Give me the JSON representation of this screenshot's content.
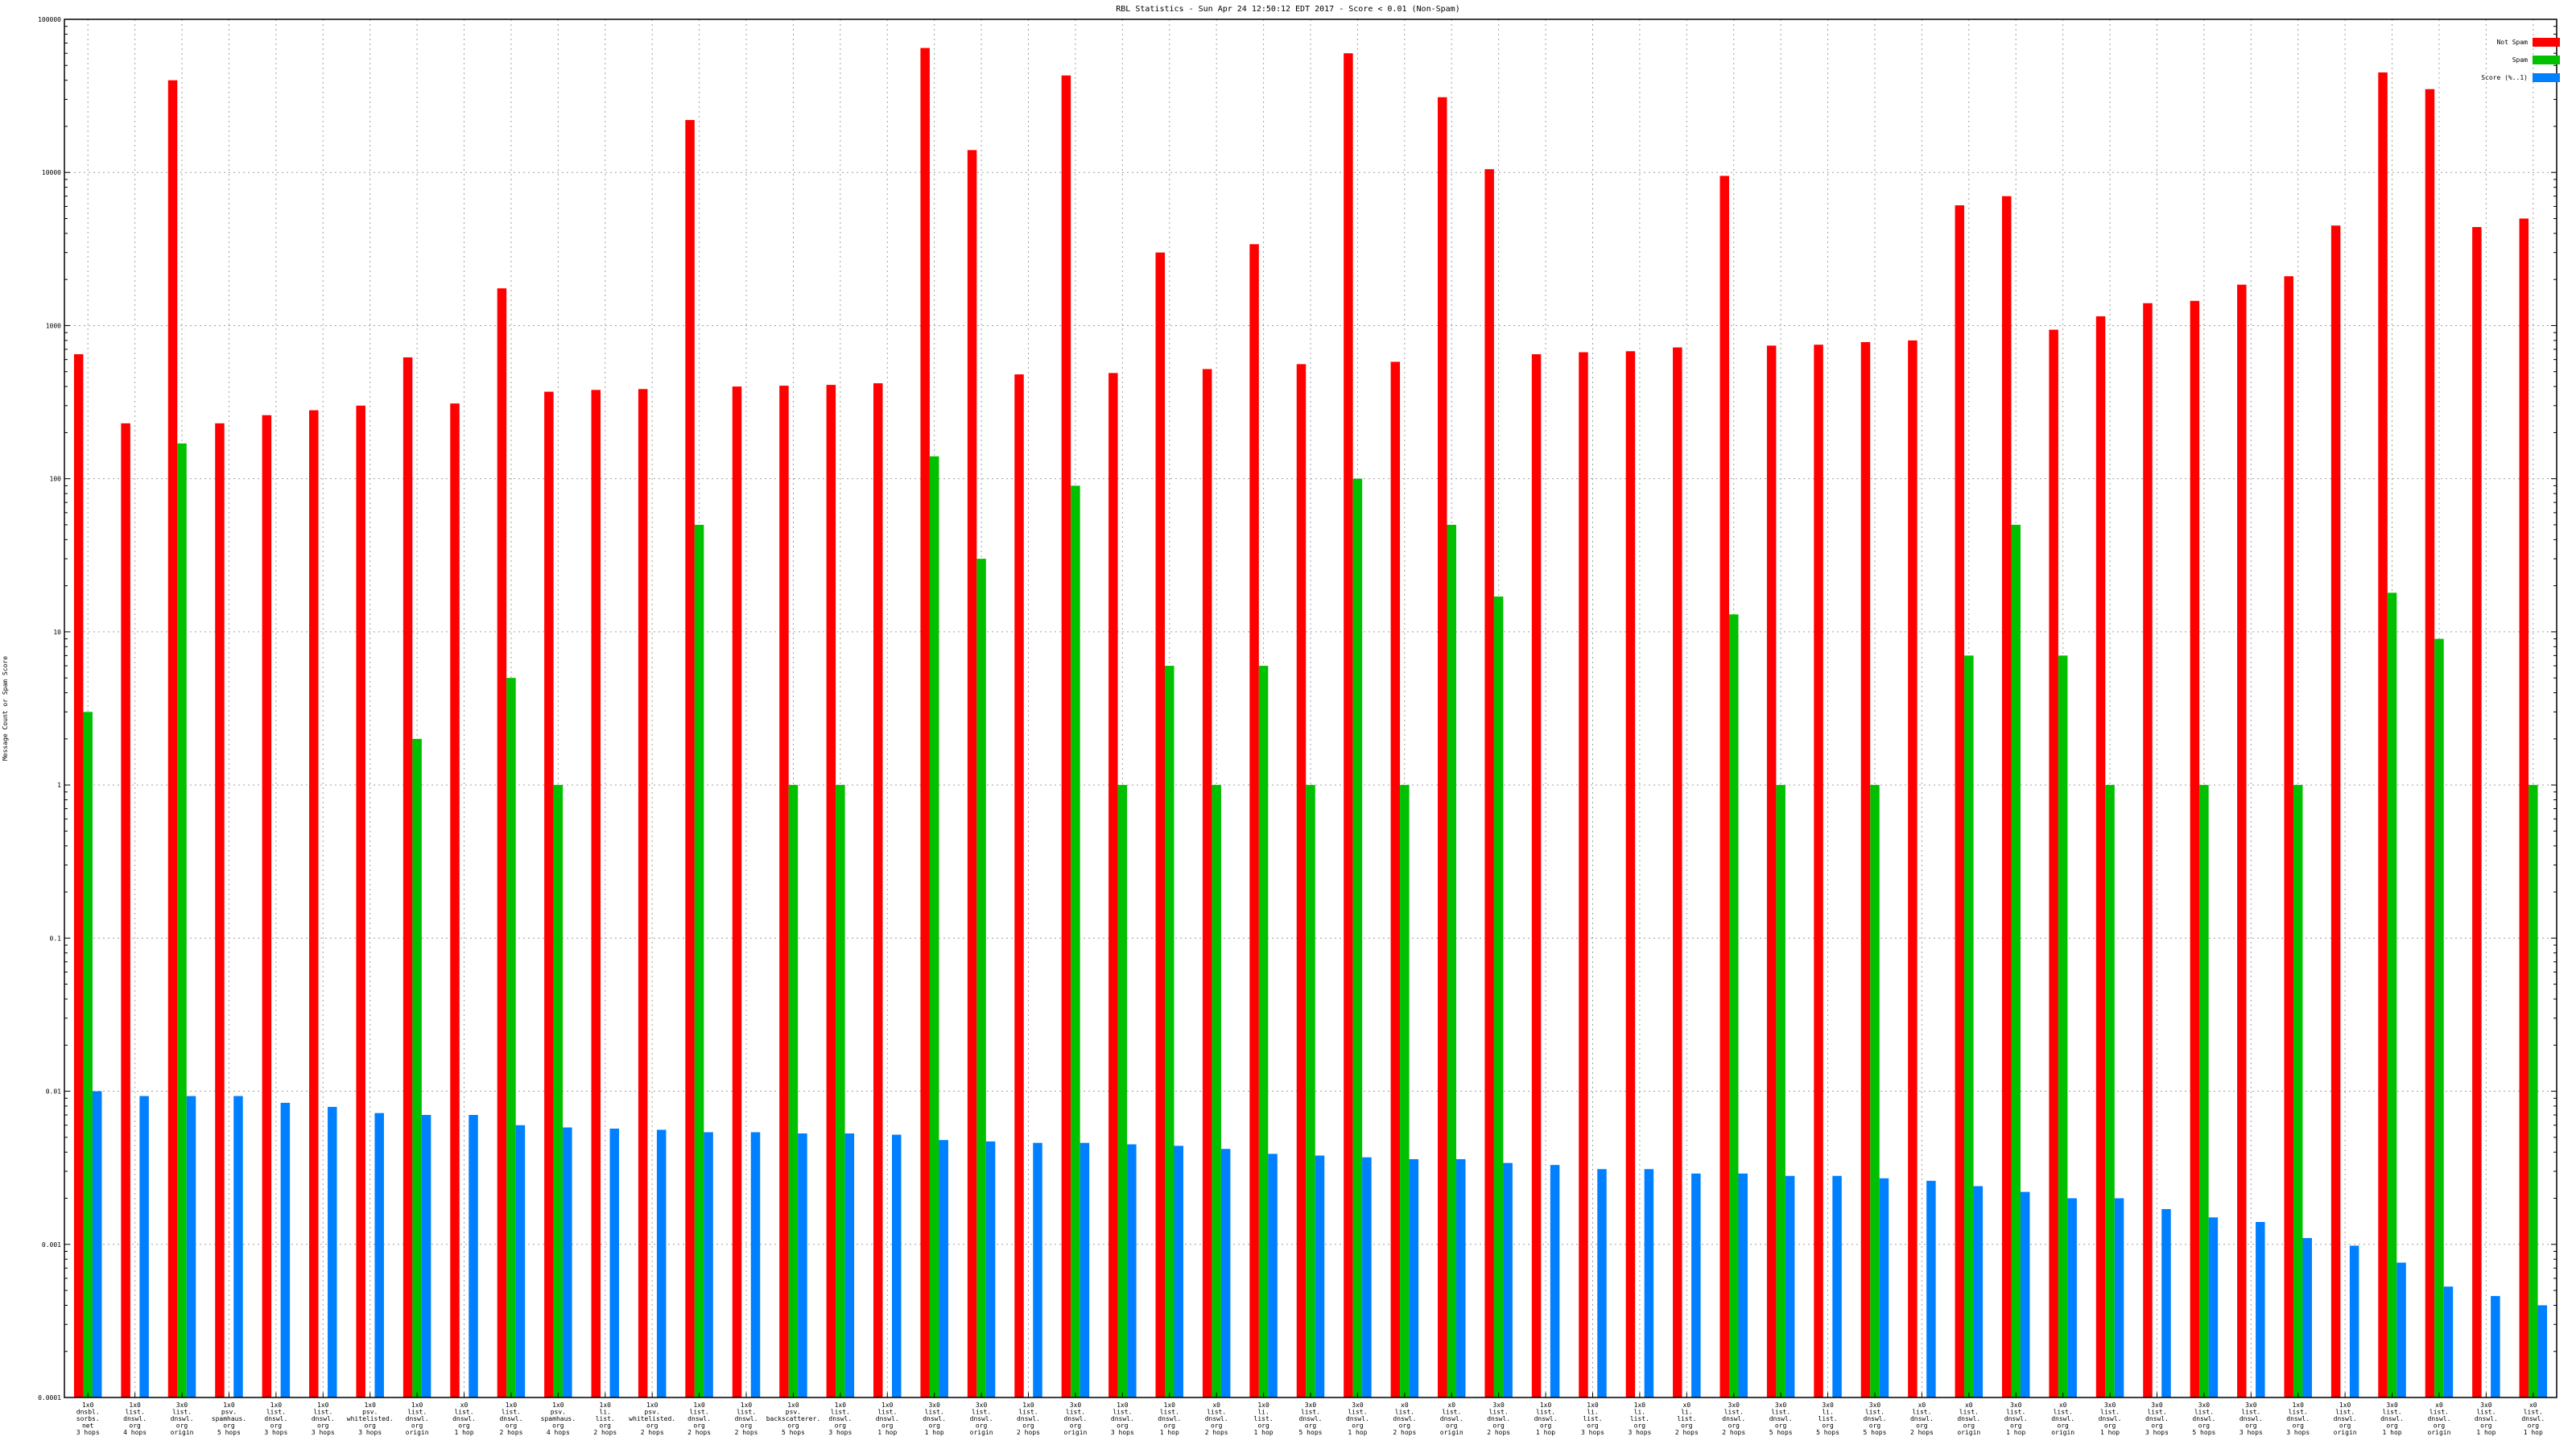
{
  "chart_data": {
    "type": "bar",
    "title": "RBL Statistics - Sun Apr 24 12:50:12 EDT 2017 - Score < 0.01 (Non-Spam)",
    "xlabel": "",
    "ylabel": "Message Count or Spam Score",
    "yscale": "log",
    "ylim": [
      0.0001,
      100000
    ],
    "yticks": [
      "0.0001",
      "0.001",
      "0.01",
      "0.1",
      "1",
      "10",
      "100",
      "1000",
      "10000",
      "100000"
    ],
    "grid": true,
    "legend_position": "top-right",
    "categories": [
      [
        "1x0",
        "dnsbl.",
        "sorbs.",
        "net",
        "3 hops"
      ],
      [
        "1x0",
        "list.",
        "dnswl.",
        "org",
        "4 hops"
      ],
      [
        "3x0",
        "list.",
        "dnswl.",
        "org",
        "origin"
      ],
      [
        "1x0",
        "psv.",
        "spamhaus.",
        "org",
        "5 hops"
      ],
      [
        "1x0",
        "list.",
        "dnswl.",
        "org",
        "3 hops"
      ],
      [
        "1x0",
        "list.",
        "dnswl.",
        "org",
        "3 hops"
      ],
      [
        "1x0",
        "psv.",
        "whitelisted.",
        "org",
        "3 hops"
      ],
      [
        "1x0",
        "list.",
        "dnswl.",
        "org",
        "origin"
      ],
      [
        "x0",
        "list.",
        "dnswl.",
        "org",
        "1 hop"
      ],
      [
        "1x0",
        "list.",
        "dnswl.",
        "org",
        "2 hops"
      ],
      [
        "1x0",
        "psv.",
        "spamhaus.",
        "org",
        "4 hops"
      ],
      [
        "1x0",
        "li.",
        "list.",
        "org",
        "2 hops"
      ],
      [
        "1x0",
        "psv.",
        "whitelisted.",
        "org",
        "2 hops"
      ],
      [
        "1x0",
        "list.",
        "dnswl.",
        "org",
        "2 hops"
      ],
      [
        "1x0",
        "list.",
        "dnswl.",
        "org",
        "2 hops"
      ],
      [
        "1x0",
        "psv.",
        "backscatterer.",
        "org",
        "5 hops"
      ],
      [
        "1x0",
        "list.",
        "dnswl.",
        "org",
        "3 hops"
      ],
      [
        "1x0",
        "list.",
        "dnswl.",
        "org",
        "1 hop"
      ],
      [
        "3x0",
        "list.",
        "dnswl.",
        "org",
        "1 hop"
      ],
      [
        "3x0",
        "list.",
        "dnswl.",
        "org",
        "origin"
      ],
      [
        "1x0",
        "list.",
        "dnswl.",
        "org",
        "2 hops"
      ],
      [
        "3x0",
        "list.",
        "dnswl.",
        "org",
        "origin"
      ],
      [
        "1x0",
        "list.",
        "dnswl.",
        "org",
        "3 hops"
      ],
      [
        "1x0",
        "list.",
        "dnswl.",
        "org",
        "1 hop"
      ],
      [
        "x0",
        "list.",
        "dnswl.",
        "org",
        "2 hops"
      ],
      [
        "1x0",
        "li.",
        "list.",
        "org",
        "1 hop"
      ],
      [
        "3x0",
        "list.",
        "dnswl.",
        "org",
        "5 hops"
      ],
      [
        "3x0",
        "list.",
        "dnswl.",
        "org",
        "1 hop"
      ],
      [
        "x0",
        "list.",
        "dnswl.",
        "org",
        "2 hops"
      ],
      [
        "x0",
        "list.",
        "dnswl.",
        "org",
        "origin"
      ],
      [
        "3x0",
        "list.",
        "dnswl.",
        "org",
        "2 hops"
      ],
      [
        "1x0",
        "list.",
        "dnswl.",
        "org",
        "1 hop"
      ],
      [
        "1x0",
        "li.",
        "list.",
        "org",
        "3 hops"
      ],
      [
        "1x0",
        "li.",
        "list.",
        "org",
        "3 hops"
      ],
      [
        "x0",
        "li.",
        "list.",
        "org",
        "2 hops"
      ],
      [
        "3x0",
        "list.",
        "dnswl.",
        "org",
        "2 hops"
      ],
      [
        "3x0",
        "list.",
        "dnswl.",
        "org",
        "5 hops"
      ],
      [
        "3x0",
        "li.",
        "list.",
        "org",
        "5 hops"
      ],
      [
        "3x0",
        "list.",
        "dnswl.",
        "org",
        "5 hops"
      ],
      [
        "x0",
        "list.",
        "dnswl.",
        "org",
        "2 hops"
      ],
      [
        "x0",
        "list.",
        "dnswl.",
        "org",
        "origin"
      ],
      [
        "3x0",
        "list.",
        "dnswl.",
        "org",
        "1 hop"
      ],
      [
        "x0",
        "list.",
        "dnswl.",
        "org",
        "origin"
      ],
      [
        "3x0",
        "list.",
        "dnswl.",
        "org",
        "1 hop"
      ],
      [
        "3x0",
        "list.",
        "dnswl.",
        "org",
        "3 hops"
      ],
      [
        "3x0",
        "list.",
        "dnswl.",
        "org",
        "5 hops"
      ],
      [
        "3x0",
        "list.",
        "dnswl.",
        "org",
        "3 hops"
      ],
      [
        "1x0",
        "list.",
        "dnswl.",
        "org",
        "3 hops"
      ],
      [
        "1x0",
        "list.",
        "dnswl.",
        "org",
        "origin"
      ],
      [
        "3x0",
        "list.",
        "dnswl.",
        "org",
        "1 hop"
      ],
      [
        "x0",
        "list.",
        "dnswl.",
        "org",
        "origin"
      ],
      [
        "3x0",
        "list.",
        "dnswl.",
        "org",
        "1 hop"
      ],
      [
        "x0",
        "list.",
        "dnswl.",
        "org",
        "1 hop"
      ]
    ],
    "series": [
      {
        "name": "Not Spam",
        "color": "#ff0000",
        "values": [
          650,
          230,
          40000,
          230,
          260,
          280,
          300,
          620,
          310,
          1750,
          370,
          380,
          385,
          22000,
          400,
          405,
          410,
          420,
          65000,
          14000,
          480,
          43000,
          490,
          3000,
          520,
          3400,
          560,
          60000,
          580,
          31000,
          10500,
          650,
          670,
          680,
          720,
          9500,
          740,
          750,
          780,
          800,
          6100,
          7000,
          940,
          1150,
          1400,
          1450,
          1850,
          2100,
          4500,
          45000,
          35000,
          4400,
          5000
        ]
      },
      {
        "name": "Spam",
        "color": "#00c000",
        "values": [
          3,
          null,
          170,
          null,
          null,
          null,
          null,
          2,
          null,
          5,
          1,
          null,
          null,
          50,
          null,
          1,
          1,
          null,
          140,
          30,
          null,
          90,
          1,
          6,
          1,
          6,
          1,
          100,
          1,
          50,
          17,
          null,
          null,
          null,
          null,
          13,
          1,
          null,
          1,
          null,
          7,
          50,
          7,
          1,
          null,
          1,
          null,
          1,
          null,
          18,
          9,
          null,
          1
        ]
      },
      {
        "name": "Score (%..1)",
        "color": "#0080ff",
        "values": [
          0.01,
          0.0093,
          0.0093,
          0.0093,
          0.0084,
          0.0079,
          0.0072,
          0.007,
          0.007,
          0.006,
          0.0058,
          0.0057,
          0.0056,
          0.0054,
          0.0054,
          0.0053,
          0.0053,
          0.0052,
          0.0048,
          0.0047,
          0.0046,
          0.0046,
          0.0045,
          0.0044,
          0.0042,
          0.0039,
          0.0038,
          0.0037,
          0.0036,
          0.0036,
          0.0034,
          0.0033,
          0.0031,
          0.0031,
          0.0029,
          0.0029,
          0.0028,
          0.0028,
          0.0027,
          0.0026,
          0.0024,
          0.0022,
          0.002,
          0.002,
          0.0017,
          0.0015,
          0.0014,
          0.0011,
          0.00098,
          0.00076,
          0.00053,
          0.00046,
          0.0004
        ]
      }
    ]
  }
}
